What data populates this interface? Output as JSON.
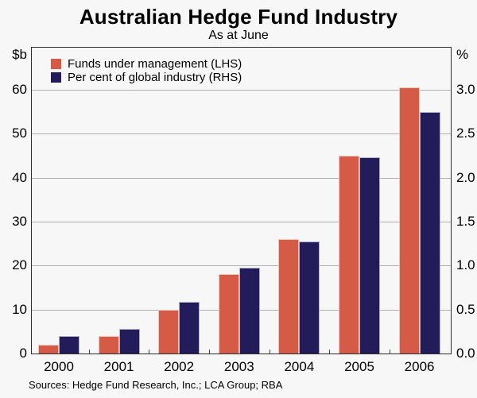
{
  "title": "Australian Hedge Fund Industry",
  "subtitle": "As at June",
  "source_note": "Sources: Hedge Fund Research, Inc.; LCA Group; RBA",
  "left_axis_unit": "$b",
  "right_axis_unit": "%",
  "legend": [
    {
      "label": "Funds under management (LHS)",
      "color": "#d65b46"
    },
    {
      "label": "Per cent of global industry (RHS)",
      "color": "#221c5a"
    }
  ],
  "colors": {
    "fum_bar": "#d65b46",
    "pct_bar": "#221c5a",
    "background": "#f7f7f7",
    "gridline": "#b0b0b0",
    "frame": "#2e2e2e"
  },
  "chart_data": {
    "type": "bar",
    "title": "Australian Hedge Fund Industry",
    "subtitle": "As at June",
    "categories": [
      "2000",
      "2001",
      "2002",
      "2003",
      "2004",
      "2005",
      "2006"
    ],
    "series": [
      {
        "name": "Funds under management (LHS)",
        "axis": "left",
        "unit": "$b",
        "color": "#d65b46",
        "values": [
          2,
          4,
          10,
          18,
          26,
          45,
          60.5
        ]
      },
      {
        "name": "Per cent of global industry (RHS)",
        "axis": "right",
        "unit": "%",
        "color": "#221c5a",
        "values": [
          0.2,
          0.28,
          0.59,
          0.98,
          1.27,
          2.23,
          2.75
        ]
      }
    ],
    "left_axis": {
      "label": "$b",
      "ticks": [
        0,
        10,
        20,
        30,
        40,
        50,
        60
      ],
      "lim": [
        0,
        70
      ]
    },
    "right_axis": {
      "label": "%",
      "ticks": [
        0.0,
        0.5,
        1.0,
        1.5,
        2.0,
        2.5,
        3.0
      ],
      "lim": [
        0,
        3.5
      ]
    },
    "grid": true,
    "legend_position": "top-left"
  }
}
